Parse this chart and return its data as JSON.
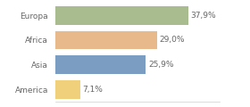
{
  "categories": [
    "Europa",
    "Africa",
    "Asia",
    "America"
  ],
  "values": [
    37.9,
    29.0,
    25.9,
    7.1
  ],
  "bar_colors": [
    "#a8bc8f",
    "#e8b98a",
    "#7b9dc2",
    "#f0d07a"
  ],
  "labels": [
    "37,9%",
    "29,0%",
    "25,9%",
    "7,1%"
  ],
  "background_color": "#ffffff",
  "xlim": [
    0,
    47
  ],
  "bar_height": 0.75,
  "text_fontsize": 6.5,
  "label_fontsize": 6.5,
  "text_color": "#666666"
}
